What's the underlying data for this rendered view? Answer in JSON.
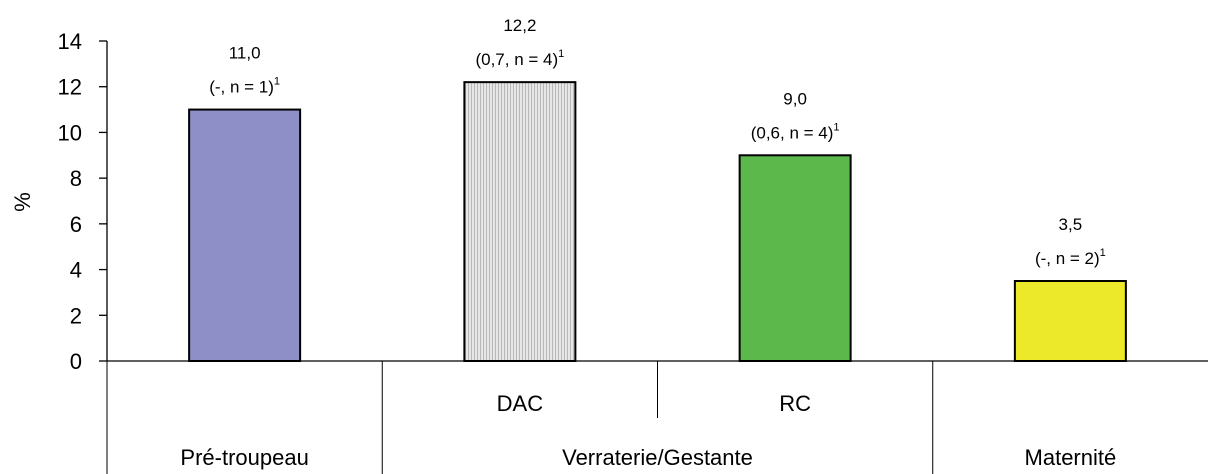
{
  "chart_data": {
    "type": "bar",
    "ylabel": "%",
    "ylim": [
      0,
      14
    ],
    "yticks": [
      "0",
      "2",
      "4",
      "6",
      "8",
      "10",
      "12",
      "14"
    ],
    "grid": false,
    "legend": "none",
    "bars": [
      {
        "label": "",
        "group": "Pré-troupeau",
        "value": 11.0,
        "value_text": "11,0",
        "annotation": "(-, n = 1)",
        "sup": "1",
        "color": "#8f8fc7",
        "hatched": false
      },
      {
        "label": "DAC",
        "group": "Verraterie/Gestante",
        "value": 12.2,
        "value_text": "12,2",
        "annotation": "(0,7, n = 4)",
        "sup": "1",
        "color": "#dcdcdc",
        "hatched": true
      },
      {
        "label": "RC",
        "group": "Verraterie/Gestante",
        "value": 9.0,
        "value_text": "9,0",
        "annotation": "(0,6, n = 4)",
        "sup": "1",
        "color": "#5cb84a",
        "hatched": false
      },
      {
        "label": "",
        "group": "Maternité",
        "value": 3.5,
        "value_text": "3,5",
        "annotation": "(-, n = 2)",
        "sup": "1",
        "color": "#ece82a",
        "hatched": false
      }
    ],
    "groups": [
      "Pré-troupeau",
      "Verraterie/Gestante",
      "Maternité"
    ]
  }
}
